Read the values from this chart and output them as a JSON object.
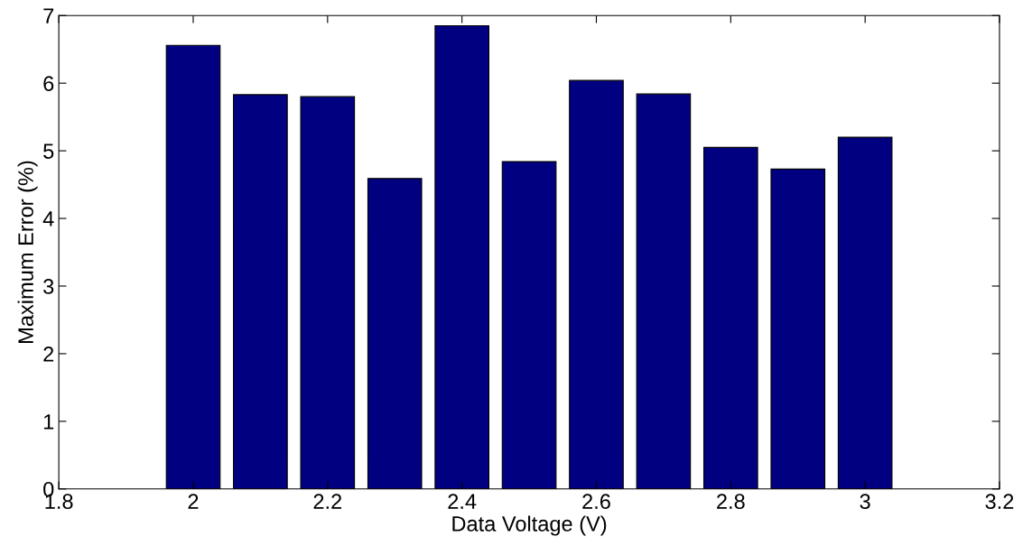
{
  "chart_data": {
    "type": "bar",
    "xlabel": "Data Voltage (V)",
    "ylabel": "Maximum Error (%)",
    "x": [
      2.0,
      2.1,
      2.2,
      2.3,
      2.4,
      2.5,
      2.6,
      2.7,
      2.8,
      2.9,
      3.0
    ],
    "values": [
      6.56,
      5.83,
      5.8,
      4.59,
      6.85,
      4.84,
      6.04,
      5.84,
      5.05,
      4.73,
      5.2
    ],
    "color": "#000080",
    "xlim": [
      1.8,
      3.2
    ],
    "xticks": [
      1.8,
      2,
      2.2,
      2.4,
      2.6,
      2.8,
      3,
      3.2
    ],
    "ylim": [
      0,
      7
    ],
    "yticks": [
      0,
      1,
      2,
      3,
      4,
      5,
      6,
      7
    ],
    "grid": false
  }
}
